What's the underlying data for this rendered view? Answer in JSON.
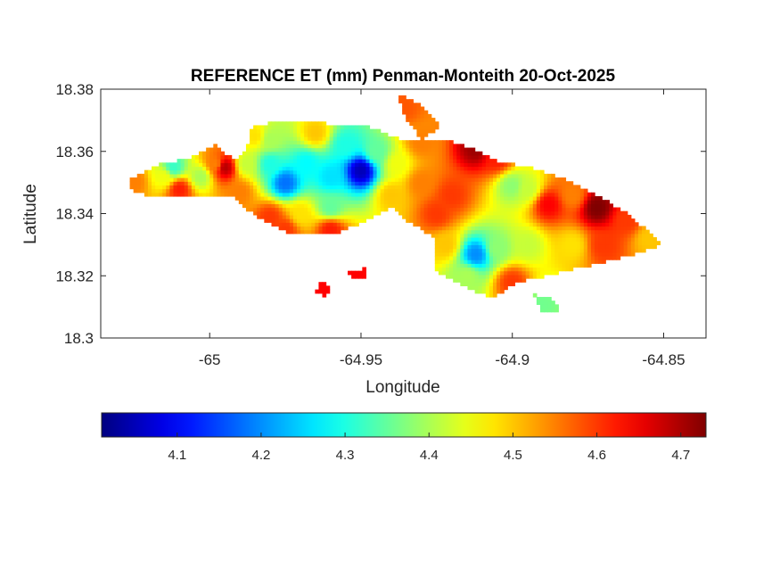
{
  "chart_data": {
    "type": "heatmap",
    "title": "REFERENCE ET (mm) Penman-Monteith 20-Oct-2025",
    "xlabel": "Longitude",
    "ylabel": "Latitude",
    "xlim": [
      -65.036,
      -64.836
    ],
    "ylim": [
      18.3,
      18.38
    ],
    "x_ticks": [
      -65.0,
      -64.95,
      -64.9,
      -64.85
    ],
    "x_tick_labels": [
      "-65",
      "-64.95",
      "-64.9",
      "-64.85"
    ],
    "y_ticks": [
      18.3,
      18.32,
      18.34,
      18.36,
      18.38
    ],
    "y_tick_labels": [
      "18.3",
      "18.32",
      "18.34",
      "18.36",
      "18.38"
    ],
    "colorbar": {
      "orientation": "horizontal",
      "colormap": "jet",
      "range": [
        4.01,
        4.73
      ],
      "ticks": [
        4.1,
        4.2,
        4.3,
        4.4,
        4.5,
        4.6,
        4.7
      ],
      "tick_labels": [
        "4.1",
        "4.2",
        "4.3",
        "4.4",
        "4.5",
        "4.6",
        "4.7"
      ]
    },
    "boundary": [
      [
        -65.027,
        18.3505
      ],
      [
        -65.018,
        18.3555
      ],
      [
        -65.008,
        18.3575
      ],
      [
        -64.998,
        18.3625
      ],
      [
        -64.992,
        18.357
      ],
      [
        -64.988,
        18.36
      ],
      [
        -64.986,
        18.368
      ],
      [
        -64.975,
        18.37
      ],
      [
        -64.962,
        18.369
      ],
      [
        -64.948,
        18.368
      ],
      [
        -64.937,
        18.364
      ],
      [
        -64.93,
        18.364
      ],
      [
        -64.923,
        18.364
      ],
      [
        -64.916,
        18.362
      ],
      [
        -64.905,
        18.357
      ],
      [
        -64.895,
        18.355
      ],
      [
        -64.883,
        18.351
      ],
      [
        -64.872,
        18.346
      ],
      [
        -64.862,
        18.34
      ],
      [
        -64.85,
        18.33
      ],
      [
        -64.863,
        18.326
      ],
      [
        -64.885,
        18.321
      ],
      [
        -64.898,
        18.318
      ],
      [
        -64.907,
        18.313
      ],
      [
        -64.915,
        18.316
      ],
      [
        -64.926,
        18.322
      ],
      [
        -64.925,
        18.332
      ],
      [
        -64.935,
        18.338
      ],
      [
        -64.94,
        18.342
      ],
      [
        -64.95,
        18.337
      ],
      [
        -64.96,
        18.333
      ],
      [
        -64.974,
        18.334
      ],
      [
        -64.985,
        18.3395
      ],
      [
        -64.992,
        18.345
      ],
      [
        -65.005,
        18.3455
      ],
      [
        -65.018,
        18.345
      ],
      [
        -65.027,
        18.348
      ]
    ],
    "islets": [
      [
        [
          -64.938,
          18.379
        ],
        [
          -64.931,
          18.3755
        ],
        [
          -64.924,
          18.368
        ],
        [
          -64.93,
          18.364
        ],
        [
          -64.936,
          18.372
        ]
      ],
      [
        [
          -64.954,
          18.321
        ],
        [
          -64.948,
          18.3225
        ],
        [
          -64.948,
          18.3195
        ],
        [
          -64.953,
          18.319
        ]
      ],
      [
        [
          -64.963,
          18.3185
        ],
        [
          -64.96,
          18.3165
        ],
        [
          -64.962,
          18.313
        ],
        [
          -64.965,
          18.315
        ]
      ],
      [
        [
          -64.893,
          18.314
        ],
        [
          -64.887,
          18.313
        ],
        [
          -64.884,
          18.308
        ],
        [
          -64.89,
          18.3085
        ]
      ]
    ],
    "control_points": [
      [
        -65.025,
        18.3505,
        4.55
      ],
      [
        -65.015,
        18.352,
        4.45
      ],
      [
        -65.012,
        18.355,
        4.32
      ],
      [
        -65.01,
        18.348,
        4.62
      ],
      [
        -65.003,
        18.352,
        4.4
      ],
      [
        -64.998,
        18.356,
        4.55
      ],
      [
        -64.995,
        18.355,
        4.69
      ],
      [
        -64.988,
        18.356,
        4.42
      ],
      [
        -64.98,
        18.364,
        4.4
      ],
      [
        -64.98,
        18.356,
        4.3
      ],
      [
        -64.975,
        18.35,
        4.18
      ],
      [
        -64.968,
        18.356,
        4.28
      ],
      [
        -64.96,
        18.352,
        4.26
      ],
      [
        -64.95,
        18.354,
        4.05
      ],
      [
        -64.955,
        18.362,
        4.3
      ],
      [
        -64.945,
        18.36,
        4.35
      ],
      [
        -64.938,
        18.356,
        4.45
      ],
      [
        -64.93,
        18.35,
        4.55
      ],
      [
        -64.92,
        18.346,
        4.6
      ],
      [
        -64.912,
        18.361,
        4.71
      ],
      [
        -64.905,
        18.358,
        4.62
      ],
      [
        -64.9,
        18.349,
        4.38
      ],
      [
        -64.895,
        18.348,
        4.42
      ],
      [
        -64.888,
        18.343,
        4.64
      ],
      [
        -64.88,
        18.346,
        4.55
      ],
      [
        -64.872,
        18.342,
        4.73
      ],
      [
        -64.862,
        18.338,
        4.6
      ],
      [
        -64.855,
        18.332,
        4.5
      ],
      [
        -64.87,
        18.33,
        4.6
      ],
      [
        -64.88,
        18.33,
        4.48
      ],
      [
        -64.895,
        18.33,
        4.42
      ],
      [
        -64.905,
        18.329,
        4.38
      ],
      [
        -64.912,
        18.327,
        4.2
      ],
      [
        -64.915,
        18.32,
        4.4
      ],
      [
        -64.9,
        18.318,
        4.6
      ],
      [
        -64.89,
        18.311,
        4.36
      ],
      [
        -64.922,
        18.33,
        4.5
      ],
      [
        -64.925,
        18.34,
        4.6
      ],
      [
        -64.94,
        18.346,
        4.5
      ],
      [
        -64.96,
        18.342,
        4.35
      ],
      [
        -64.97,
        18.34,
        4.48
      ],
      [
        -64.98,
        18.339,
        4.6
      ],
      [
        -64.96,
        18.335,
        4.62
      ],
      [
        -64.975,
        18.335,
        4.6
      ],
      [
        -64.99,
        18.347,
        4.55
      ],
      [
        -64.985,
        18.365,
        4.48
      ],
      [
        -64.965,
        18.366,
        4.5
      ],
      [
        -64.936,
        18.374,
        4.58
      ],
      [
        -64.952,
        18.3205,
        4.64
      ],
      [
        -64.962,
        18.316,
        4.64
      ],
      [
        -64.93,
        18.363,
        4.55
      ]
    ]
  }
}
